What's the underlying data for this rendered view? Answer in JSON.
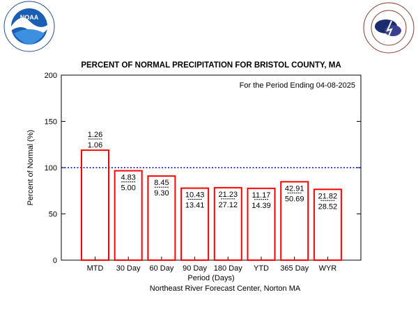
{
  "logos": {
    "noaa": {
      "text": "NOAA",
      "ring_text": "NATIONAL OCEANIC AND ATMOSPHERIC ADMINISTRATION · U.S. DEPARTMENT OF COMMERCE"
    },
    "nws": {
      "ring_text": "NATIONAL WEATHER SERVICE"
    }
  },
  "chart_data": {
    "type": "bar",
    "title": "PERCENT OF NORMAL PRECIPITATION FOR BRISTOL COUNTY, MA",
    "subtitle": "For the Period Ending 04-08-2025",
    "xlabel": "Period (Days)",
    "ylabel": "Percent of Normal (%)",
    "footer": "Northeast River Forecast Center, Norton MA",
    "ylim": [
      0,
      200
    ],
    "yticks": [
      "0",
      "50",
      "100",
      "150",
      "200"
    ],
    "reference_line": 100,
    "categories": [
      "MTD",
      "30 Day",
      "60 Day",
      "90 Day",
      "180 Day",
      "YTD",
      "365 Day",
      "WYR"
    ],
    "observed": [
      "1.26",
      "4.83",
      "8.45",
      "10.43",
      "21.23",
      "11.17",
      "42.91",
      "21.82"
    ],
    "normal": [
      "1.06",
      "5.00",
      "9.30",
      "13.41",
      "27.12",
      "14.39",
      "50.69",
      "28.52"
    ],
    "values": [
      118.9,
      96.6,
      90.9,
      77.8,
      78.3,
      77.6,
      84.7,
      76.5
    ],
    "colors": {
      "bar": "#ff0000",
      "reference": "#0000cc"
    }
  }
}
